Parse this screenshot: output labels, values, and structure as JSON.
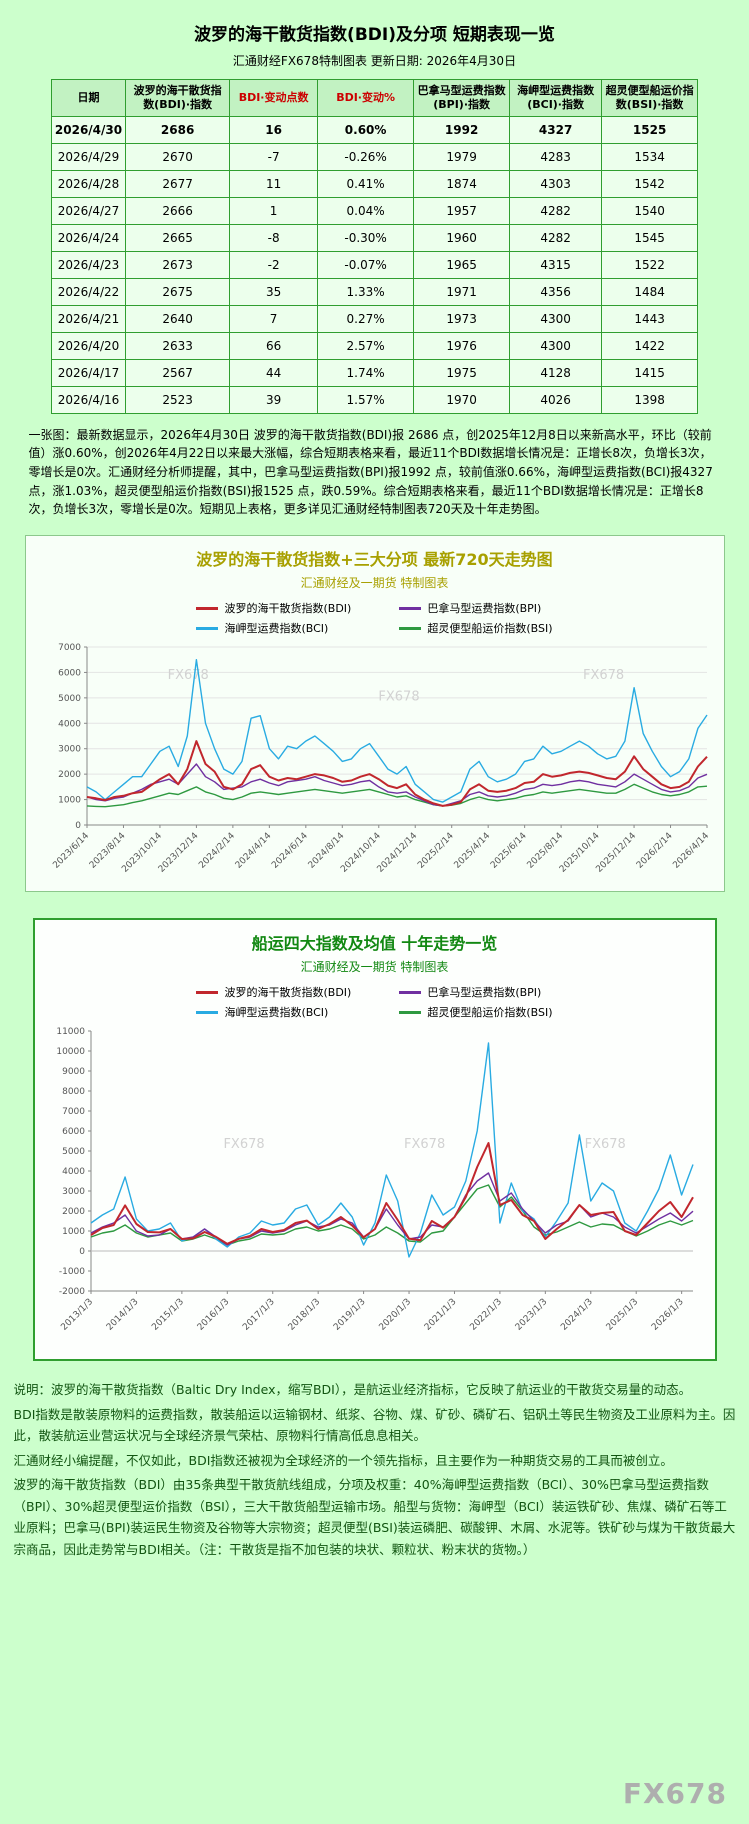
{
  "page": {
    "bg": "#ccffcc",
    "table_border": "#2f9e2f"
  },
  "table_section": {
    "title": "波罗的海干散货指数(BDI)及分项 短期表现一览",
    "subtitle": "汇通财经FX678特制图表    更新日期: 2026年4月30日",
    "columns": [
      "日期",
      "波罗的海干散货指数(BDI)·指数",
      "BDI·变动点数",
      "BDI·变动%",
      "巴拿马型运费指数(BPI)·指数",
      "海岬型运费指数(BCI)·指数",
      "超灵便型船运价指数(BSI)·指数"
    ],
    "red_columns": [
      2,
      3
    ],
    "rows": [
      [
        "2026/4/30",
        "2686",
        "16",
        "0.60%",
        "1992",
        "4327",
        "1525"
      ],
      [
        "2026/4/29",
        "2670",
        "-7",
        "-0.26%",
        "1979",
        "4283",
        "1534"
      ],
      [
        "2026/4/28",
        "2677",
        "11",
        "0.41%",
        "1874",
        "4303",
        "1542"
      ],
      [
        "2026/4/27",
        "2666",
        "1",
        "0.04%",
        "1957",
        "4282",
        "1540"
      ],
      [
        "2026/4/24",
        "2665",
        "-8",
        "-0.30%",
        "1960",
        "4282",
        "1545"
      ],
      [
        "2026/4/23",
        "2673",
        "-2",
        "-0.07%",
        "1965",
        "4315",
        "1522"
      ],
      [
        "2026/4/22",
        "2675",
        "35",
        "1.33%",
        "1971",
        "4356",
        "1484"
      ],
      [
        "2026/4/21",
        "2640",
        "7",
        "0.27%",
        "1973",
        "4300",
        "1443"
      ],
      [
        "2026/4/20",
        "2633",
        "66",
        "2.57%",
        "1976",
        "4300",
        "1422"
      ],
      [
        "2026/4/17",
        "2567",
        "44",
        "1.74%",
        "1975",
        "4128",
        "1415"
      ],
      [
        "2026/4/16",
        "2523",
        "39",
        "1.57%",
        "1970",
        "4026",
        "1398"
      ]
    ],
    "note": "一张图：最新数据显示，2026年4月30日 波罗的海干散货指数(BDI)报 2686 点，创2025年12月8日以来新高水平，环比（较前值）涨0.60%，创2026年4月22日以来最大涨幅，综合短期表格来看，最近11个BDI数据增长情况是：正增长8次，负增长3次，零增长是0次。汇通财经分析师提醒，其中，巴拿马型运费指数(BPI)报1992 点，较前值涨0.66%，海岬型运费指数(BCI)报4327 点，涨1.03%，超灵便型船运价指数(BSI)报1525 点，跌0.59%。综合短期表格来看，最近11个BDI数据增长情况是：正增长8次，负增长3次，零增长是0次。短期见上表格，更多详见汇通财经特制图表720天及十年走势图。"
  },
  "chart_data": [
    {
      "id": "chart720",
      "type": "line",
      "title": "波罗的海干散货指数+三大分项  最新720天走势图",
      "subtitle": "汇通财经及一期货  特制图表",
      "ylim": [
        0,
        7000
      ],
      "ystep": 1000,
      "grid": true,
      "legend_position": "top",
      "xtick_step": 4,
      "xticks": [
        "2023/6/14",
        "2023/8/14",
        "2023/10/14",
        "2023/12/14",
        "2024/2/14",
        "2024/4/14",
        "2024/6/14",
        "2024/8/14",
        "2024/10/14",
        "2024/12/14",
        "2025/2/14",
        "2025/4/14",
        "2025/6/14",
        "2025/8/14",
        "2025/10/14",
        "2025/12/14",
        "2026/2/14",
        "2026/4/14"
      ],
      "watermarks": [
        {
          "text": "FX678",
          "x": 0.13,
          "y": 0.18
        },
        {
          "text": "FX678",
          "x": 0.47,
          "y": 0.3
        },
        {
          "text": "FX678",
          "x": 0.8,
          "y": 0.18
        }
      ],
      "series": [
        {
          "name": "波罗的海干散货指数(BDI)",
          "color": "#c1272d",
          "width": 2,
          "values": [
            1100,
            1050,
            980,
            1100,
            1150,
            1250,
            1300,
            1550,
            1800,
            2000,
            1600,
            2200,
            3300,
            2400,
            2100,
            1500,
            1400,
            1600,
            2200,
            2350,
            1900,
            1750,
            1850,
            1800,
            1900,
            2000,
            1950,
            1850,
            1700,
            1750,
            1900,
            2000,
            1800,
            1550,
            1450,
            1600,
            1200,
            1000,
            850,
            750,
            800,
            900,
            1400,
            1600,
            1350,
            1300,
            1350,
            1450,
            1650,
            1700,
            2000,
            1900,
            1950,
            2050,
            2100,
            2050,
            1950,
            1850,
            1800,
            2100,
            2700,
            2200,
            1900,
            1600,
            1450,
            1500,
            1700,
            2300,
            2686
          ]
        },
        {
          "name": "巴拿马型运费指数(BPI)",
          "color": "#7030a0",
          "width": 1.4,
          "values": [
            1100,
            1000,
            950,
            1050,
            1100,
            1250,
            1400,
            1600,
            1700,
            1800,
            1600,
            2000,
            2400,
            1900,
            1700,
            1400,
            1450,
            1500,
            1700,
            1800,
            1650,
            1550,
            1700,
            1750,
            1800,
            1900,
            1750,
            1650,
            1550,
            1600,
            1700,
            1750,
            1500,
            1300,
            1250,
            1300,
            1100,
            950,
            800,
            750,
            850,
            950,
            1200,
            1300,
            1150,
            1100,
            1150,
            1250,
            1400,
            1450,
            1600,
            1550,
            1600,
            1700,
            1750,
            1700,
            1600,
            1550,
            1500,
            1700,
            2000,
            1800,
            1600,
            1400,
            1300,
            1350,
            1500,
            1850,
            1992
          ]
        },
        {
          "name": "海岬型运费指数(BCI)",
          "color": "#29abe2",
          "width": 1.4,
          "values": [
            1500,
            1300,
            1000,
            1300,
            1600,
            1900,
            1900,
            2400,
            2900,
            3100,
            2300,
            3500,
            6500,
            4000,
            3000,
            2200,
            2000,
            2500,
            4200,
            4300,
            3000,
            2600,
            3100,
            3000,
            3300,
            3500,
            3200,
            2900,
            2500,
            2600,
            3000,
            3200,
            2700,
            2200,
            2000,
            2300,
            1600,
            1300,
            1000,
            900,
            1100,
            1300,
            2200,
            2500,
            1900,
            1700,
            1800,
            2000,
            2500,
            2600,
            3100,
            2800,
            2900,
            3100,
            3300,
            3100,
            2800,
            2600,
            2700,
            3300,
            5400,
            3600,
            2900,
            2300,
            1900,
            2100,
            2600,
            3800,
            4327
          ]
        },
        {
          "name": "超灵便型船运价指数(BSI)",
          "color": "#2e9940",
          "width": 1.4,
          "values": [
            750,
            730,
            720,
            760,
            800,
            880,
            950,
            1050,
            1150,
            1250,
            1200,
            1350,
            1500,
            1300,
            1200,
            1050,
            1000,
            1100,
            1250,
            1300,
            1250,
            1200,
            1250,
            1300,
            1350,
            1400,
            1350,
            1300,
            1250,
            1300,
            1350,
            1400,
            1300,
            1200,
            1100,
            1150,
            1000,
            900,
            800,
            750,
            780,
            850,
            1000,
            1100,
            1000,
            950,
            1000,
            1050,
            1150,
            1200,
            1300,
            1250,
            1300,
            1350,
            1400,
            1350,
            1300,
            1250,
            1250,
            1400,
            1600,
            1450,
            1300,
            1200,
            1150,
            1200,
            1300,
            1500,
            1525
          ]
        }
      ]
    },
    {
      "id": "chart10y",
      "type": "line",
      "title": "船运四大指数及均值 十年走势一览",
      "subtitle": "汇通财经及一期货 特制图表",
      "ylim": [
        -2000,
        11000
      ],
      "ystep": 1000,
      "grid": false,
      "legend_position": "top",
      "xtick_step": 4,
      "xticks": [
        "2013/1/3",
        "2014/1/3",
        "2015/1/3",
        "2016/1/3",
        "2017/1/3",
        "2018/1/3",
        "2019/1/3",
        "2020/1/3",
        "2021/1/3",
        "2022/1/3",
        "2023/1/3",
        "2024/1/3",
        "2025/1/3",
        "2026/1/3"
      ],
      "watermarks": [
        {
          "text": "FX678",
          "x": 0.22,
          "y": 0.45
        },
        {
          "text": "FX678",
          "x": 0.52,
          "y": 0.45
        },
        {
          "text": "FX678",
          "x": 0.82,
          "y": 0.45
        }
      ],
      "series": [
        {
          "name": "波罗的海干散货指数(BDI)",
          "color": "#c1272d",
          "width": 2,
          "values": [
            800,
            1150,
            1300,
            2280,
            1350,
            950,
            930,
            1100,
            600,
            630,
            950,
            710,
            360,
            610,
            750,
            1100,
            950,
            1050,
            1400,
            1520,
            1100,
            1350,
            1700,
            1270,
            680,
            1100,
            2400,
            1550,
            620,
            540,
            1500,
            1170,
            1700,
            2700,
            4200,
            5400,
            2300,
            2550,
            1800,
            1500,
            600,
            1100,
            1550,
            2300,
            1800,
            1900,
            1950,
            1000,
            800,
            1400,
            2000,
            2450,
            1700,
            2686
          ]
        },
        {
          "name": "巴拿马型运费指数(BPI)",
          "color": "#7030a0",
          "width": 1.4,
          "values": [
            900,
            1200,
            1400,
            1800,
            1000,
            750,
            800,
            1100,
            600,
            700,
            1100,
            700,
            300,
            600,
            700,
            1000,
            900,
            1000,
            1300,
            1500,
            1200,
            1300,
            1600,
            1400,
            700,
            1100,
            2100,
            1300,
            600,
            700,
            1300,
            1200,
            1700,
            2800,
            3500,
            3900,
            2500,
            2900,
            2100,
            1500,
            900,
            1300,
            1500,
            2300,
            1700,
            1900,
            1700,
            1200,
            900,
            1250,
            1600,
            1900,
            1500,
            1992
          ]
        },
        {
          "name": "海岬型运费指数(BCI)",
          "color": "#29abe2",
          "width": 1.4,
          "values": [
            1400,
            1800,
            2100,
            3700,
            1600,
            1000,
            1100,
            1400,
            500,
            700,
            1100,
            600,
            200,
            700,
            900,
            1500,
            1300,
            1400,
            2100,
            2300,
            1300,
            1700,
            2400,
            1700,
            300,
            1400,
            3800,
            2500,
            -300,
            900,
            2800,
            1800,
            2200,
            3500,
            6000,
            10400,
            1400,
            3400,
            2000,
            1600,
            700,
            1500,
            2400,
            5800,
            2500,
            3400,
            3000,
            1400,
            1000,
            2000,
            3100,
            4800,
            2800,
            4327
          ]
        },
        {
          "name": "超灵便型船运价指数(BSI)",
          "color": "#2e9940",
          "width": 1.4,
          "values": [
            700,
            900,
            1000,
            1300,
            900,
            700,
            800,
            900,
            500,
            600,
            800,
            600,
            300,
            500,
            600,
            850,
            800,
            850,
            1100,
            1200,
            1000,
            1100,
            1300,
            1100,
            600,
            800,
            1200,
            900,
            500,
            450,
            900,
            1000,
            1700,
            2400,
            3100,
            3300,
            2200,
            2700,
            2000,
            1200,
            800,
            950,
            1200,
            1450,
            1200,
            1350,
            1300,
            1000,
            750,
            1000,
            1300,
            1500,
            1300,
            1525
          ]
        }
      ]
    }
  ],
  "footer": {
    "paragraphs": [
      "说明：波罗的海干散货指数（Baltic Dry Index，缩写BDI），是航运业经济指标，它反映了航运业的干散货交易量的动态。",
      "BDI指数是散装原物料的运费指数，散装船运以运输钢材、纸浆、谷物、煤、矿砂、磷矿石、铝矾土等民生物资及工业原料为主。因此，散装航运业营运状况与全球经济景气荣枯、原物料行情高低息息相关。",
      "汇通财经小编提醒，不仅如此，BDI指数还被视为全球经济的一个领先指标，且主要作为一种期货交易的工具而被创立。",
      "波罗的海干散货指数（BDI）由35条典型干散货航线组成，分项及权重：40%海岬型运费指数（BCI）、30%巴拿马型运费指数（BPI）、30%超灵便型运价指数（BSI），三大干散货船型运输市场。船型与货物：海岬型（BCI）装运铁矿砂、焦煤、磷矿石等工业原料；巴拿马(BPI)装运民生物资及谷物等大宗物资；超灵便型(BSI)装运磷肥、碳酸钾、木屑、水泥等。铁矿砂与煤为干散货最大宗商品，因此走势常与BDI相关。（注：干散货是指不加包装的块状、颗粒状、粉末状的货物。）"
    ],
    "brand": "FX678"
  }
}
